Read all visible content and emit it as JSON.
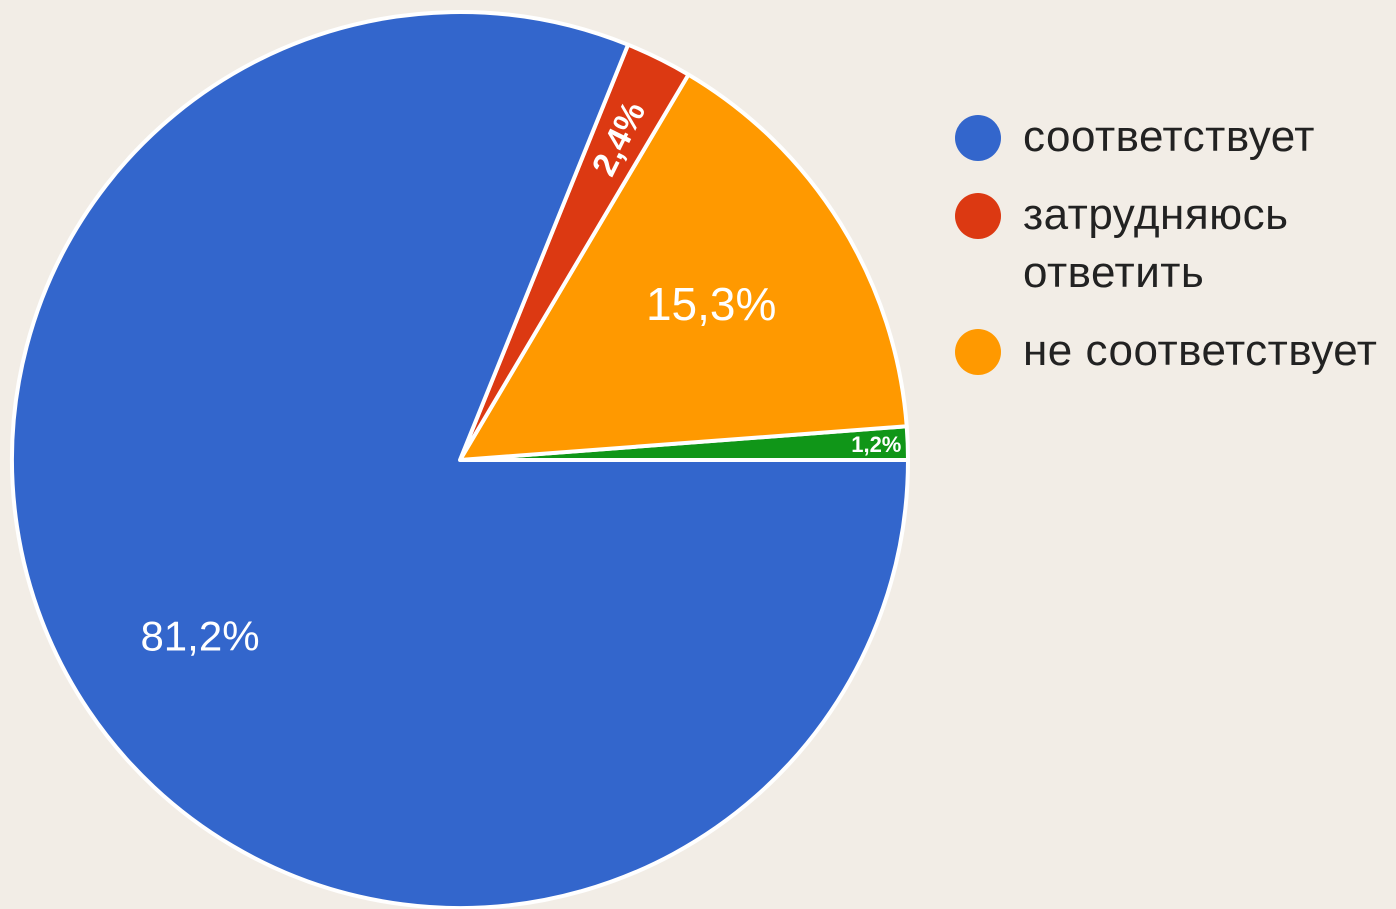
{
  "chart_data": {
    "type": "pie",
    "slices": [
      {
        "label": "соответствует",
        "value": 81.2,
        "display": "81,2%",
        "color": "#3366cc"
      },
      {
        "label": "затрудняюсь ответить",
        "value": 2.4,
        "display": "2,4%",
        "color": "#dc3912"
      },
      {
        "label": "не соответствует",
        "value": 15.3,
        "display": "15,3%",
        "color": "#ff9900"
      },
      {
        "label": "",
        "value": 1.2,
        "display": "1,2%",
        "color": "#109618"
      }
    ],
    "legend": {
      "placement": "right",
      "entries": [
        {
          "label": "соответствует",
          "color": "#3366cc"
        },
        {
          "label": "затрудняюсь ответить",
          "color": "#dc3912"
        },
        {
          "label": "не соответствует",
          "color": "#ff9900"
        }
      ]
    }
  }
}
